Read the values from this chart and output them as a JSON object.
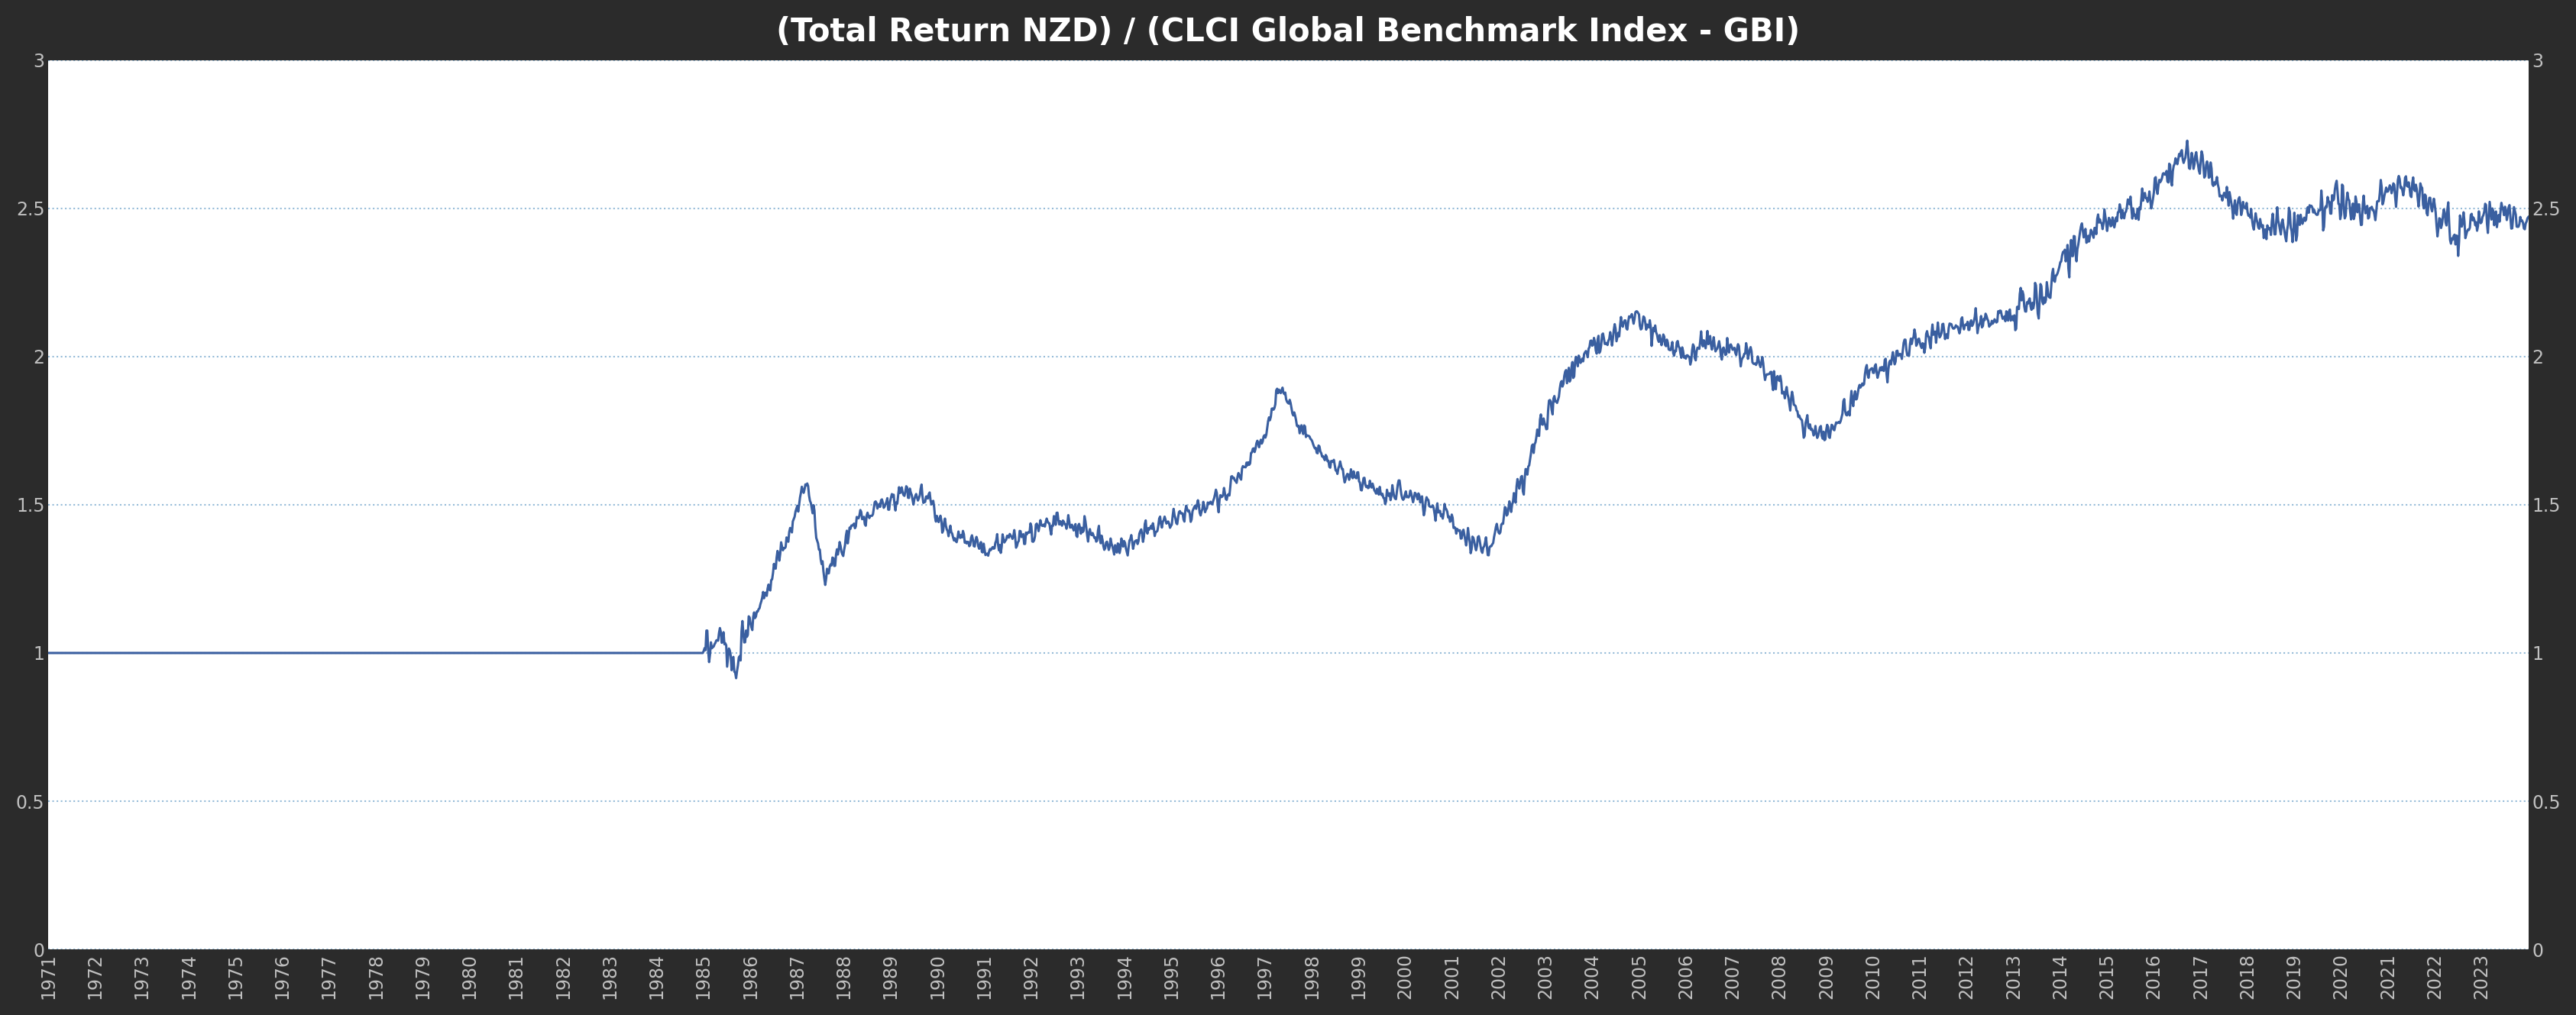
{
  "title": "(Total Return NZD) / (CLCI Global Benchmark Index - GBI)",
  "title_fontsize": 30,
  "title_color": "#ffffff",
  "background_color": "#2b2b2b",
  "plot_background_color": "#ffffff",
  "line_color": "#3a5fa0",
  "line_width": 2.2,
  "grid_color": "#8ab4d4",
  "grid_linestyle": ":",
  "grid_alpha": 0.9,
  "yticks": [
    0,
    0.5,
    1,
    1.5,
    2,
    2.5,
    3
  ],
  "ylim": [
    0,
    3
  ],
  "xlim_start": 1971,
  "xlim_end": 2024,
  "tick_label_color": "#c0c0c0",
  "tick_fontsize": 17
}
